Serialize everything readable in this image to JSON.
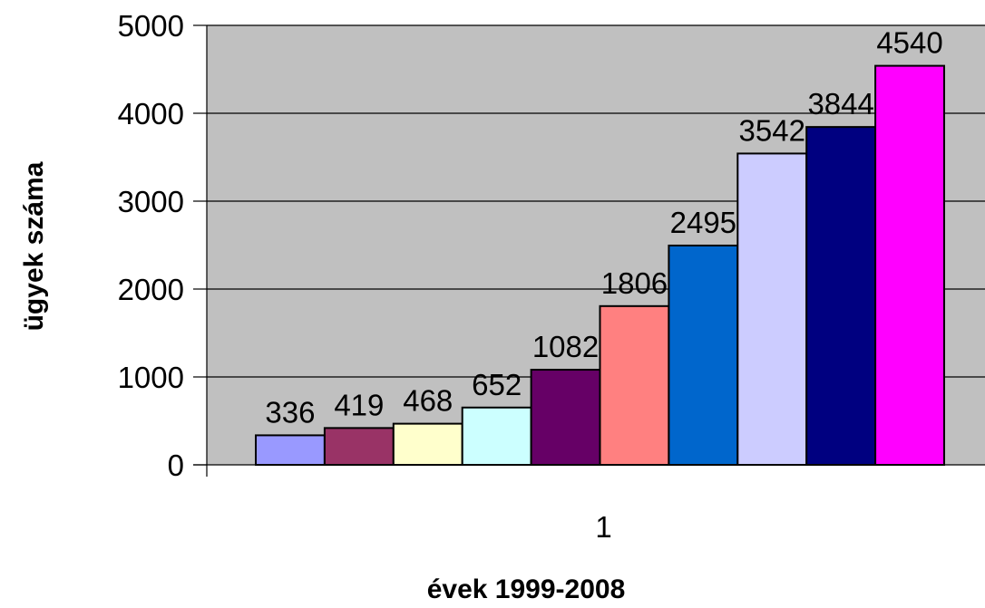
{
  "chart_data": {
    "type": "bar",
    "categories": [
      "1"
    ],
    "series": [
      {
        "values": [
          336
        ],
        "color": "#9999FF"
      },
      {
        "values": [
          419
        ],
        "color": "#993366"
      },
      {
        "values": [
          468
        ],
        "color": "#FFFFCC"
      },
      {
        "values": [
          652
        ],
        "color": "#CCFFFF"
      },
      {
        "values": [
          1082
        ],
        "color": "#660066"
      },
      {
        "values": [
          1806
        ],
        "color": "#FF8080"
      },
      {
        "values": [
          2495
        ],
        "color": "#0066CC"
      },
      {
        "values": [
          3542
        ],
        "color": "#CCCCFF"
      },
      {
        "values": [
          3844
        ],
        "color": "#000080"
      },
      {
        "values": [
          4540
        ],
        "color": "#FF00FF"
      }
    ],
    "data_labels": [
      "336",
      "419",
      "468",
      "652",
      "1082",
      "1806",
      "2495",
      "3542",
      "3844",
      "4540"
    ],
    "y_ticks": [
      "0",
      "1000",
      "2000",
      "3000",
      "4000",
      "5000"
    ],
    "ylim": [
      0,
      5000
    ],
    "xlabel": "évek 1999-2008",
    "ylabel": "ügyek száma",
    "grid": true,
    "plot_background": "#C0C0C0",
    "legend": "none"
  }
}
